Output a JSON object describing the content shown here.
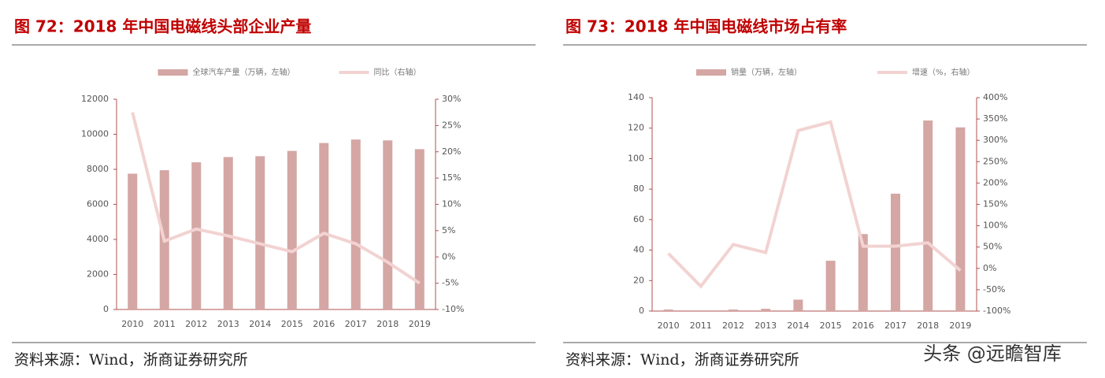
{
  "chart_data": [
    {
      "type": "combo",
      "title": "图 72：2018 年中国电磁线头部企业产量",
      "categories": [
        "2010",
        "2011",
        "2012",
        "2013",
        "2014",
        "2015",
        "2016",
        "2017",
        "2018",
        "2019"
      ],
      "series": [
        {
          "name": "全球汽车产量（万辆，左轴）",
          "type": "bar",
          "color": "#d4a6a4",
          "values": [
            7750,
            7950,
            8400,
            8700,
            8750,
            9050,
            9500,
            9700,
            9650,
            9150
          ]
        },
        {
          "name": "同比（右轴）",
          "type": "line",
          "axis": "y2",
          "color": "#f2d3d2",
          "values": [
            27.5,
            3,
            5.3,
            4,
            2.5,
            1,
            4.5,
            2.5,
            -1,
            -5
          ]
        }
      ],
      "ylim": [
        0,
        12000
      ],
      "yticks": [
        0,
        2000,
        4000,
        6000,
        8000,
        10000,
        12000
      ],
      "y2lim": [
        -10,
        30
      ],
      "y2ticks": [
        {
          "value": -10,
          "label": "-10%"
        },
        {
          "value": -5,
          "label": "-5%"
        },
        {
          "value": 0,
          "label": "0%"
        },
        {
          "value": 5,
          "label": "5%"
        },
        {
          "value": 10,
          "label": "10%"
        },
        {
          "value": 15,
          "label": "15%"
        },
        {
          "value": 20,
          "label": "20%"
        },
        {
          "value": 25,
          "label": "25%"
        },
        {
          "value": 30,
          "label": "30%"
        }
      ],
      "source": "资料来源：Wind，浙商证券研究所"
    },
    {
      "type": "combo",
      "title": "图 73：2018 年中国电磁线市场占有率",
      "categories": [
        "2010",
        "2011",
        "2012",
        "2013",
        "2014",
        "2015",
        "2016",
        "2017",
        "2018",
        "2019"
      ],
      "series": [
        {
          "name": "销量（万辆，左轴）",
          "type": "bar",
          "color": "#d4a6a4",
          "values": [
            1,
            0.5,
            1,
            1.5,
            7.5,
            33,
            50.5,
            77,
            125,
            120.5
          ]
        },
        {
          "name": "增速（%，右轴）",
          "type": "line",
          "axis": "y2",
          "color": "#f2d3d2",
          "values": [
            35,
            -42,
            56,
            37,
            323,
            343,
            52,
            52,
            60,
            -5
          ]
        }
      ],
      "ylim": [
        0,
        140
      ],
      "yticks": [
        0,
        20,
        40,
        60,
        80,
        100,
        120,
        140
      ],
      "y2lim": [
        -100,
        400
      ],
      "y2ticks": [
        {
          "value": -100,
          "label": "-100%"
        },
        {
          "value": -50,
          "label": "-50%"
        },
        {
          "value": 0,
          "label": "0%"
        },
        {
          "value": 50,
          "label": "50%"
        },
        {
          "value": 100,
          "label": "100%"
        },
        {
          "value": 150,
          "label": "150%"
        },
        {
          "value": 200,
          "label": "200%"
        },
        {
          "value": 250,
          "label": "250%"
        },
        {
          "value": 300,
          "label": "300%"
        },
        {
          "value": 350,
          "label": "350%"
        },
        {
          "value": 400,
          "label": "400%"
        }
      ],
      "source": "资料来源：Wind，浙商证券研究所"
    }
  ],
  "watermark": "头条 @远瞻智库"
}
